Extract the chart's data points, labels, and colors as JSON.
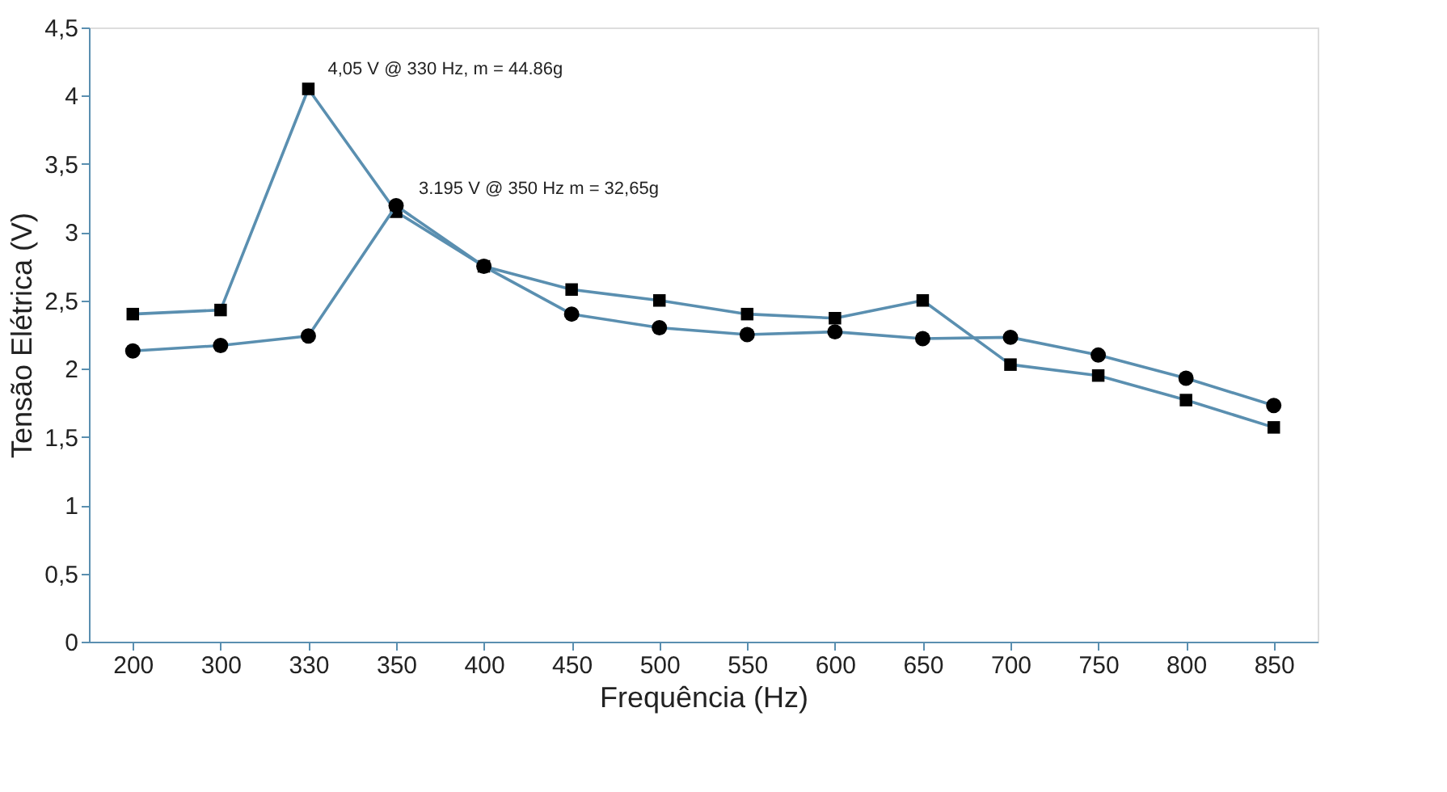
{
  "chart_data": {
    "type": "line",
    "xlabel": "Frequência (Hz)",
    "ylabel": "Tensão Elétrica (V)",
    "categories": [
      "200",
      "300",
      "330",
      "350",
      "400",
      "450",
      "500",
      "550",
      "600",
      "650",
      "700",
      "750",
      "800",
      "850"
    ],
    "series": [
      {
        "color": "#000000",
        "marker": "square",
        "values": [
          2.4,
          2.43,
          4.05,
          3.15,
          2.75,
          2.58,
          2.5,
          2.4,
          2.37,
          2.5,
          2.03,
          1.95,
          1.77,
          1.57
        ]
      },
      {
        "color": "#000000",
        "marker": "circle",
        "values": [
          2.13,
          2.17,
          2.24,
          3.195,
          2.75,
          2.4,
          2.3,
          2.25,
          2.27,
          2.22,
          2.23,
          2.1,
          1.93,
          1.73
        ]
      }
    ],
    "annotations": [
      {
        "text": "4,05 V @ 330 Hz, m = 44.86g",
        "x": "330",
        "y": 4.05
      },
      {
        "text": "3.195 V @ 350 Hz m = 32,65g",
        "x": "350",
        "y": 3.195
      }
    ],
    "ylim": [
      0,
      4.5
    ],
    "yticks": [
      0,
      {
        "value": 0.5,
        "label": "0,5"
      },
      1,
      {
        "value": 1.5,
        "label": "1,5"
      },
      2,
      {
        "value": 2.5,
        "label": "2,5"
      },
      3,
      {
        "value": 3.5,
        "label": "3,5"
      },
      4,
      {
        "value": 4.5,
        "label": "4,5"
      }
    ],
    "grid": false,
    "line_style": "solid"
  }
}
